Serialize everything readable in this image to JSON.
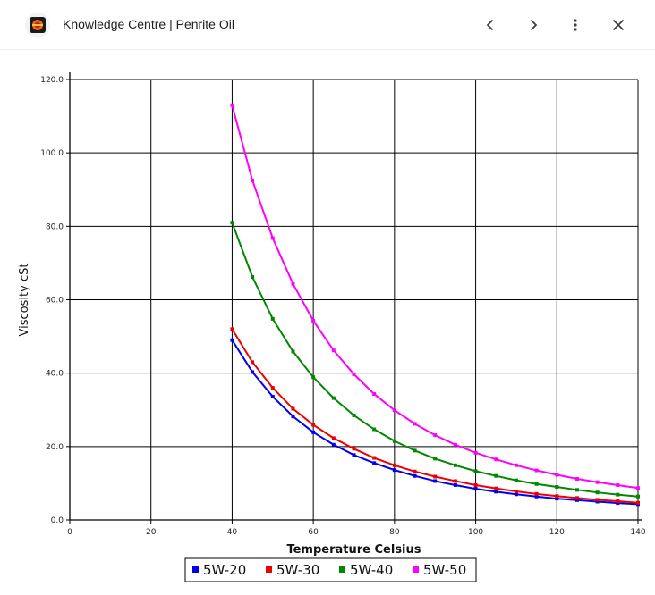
{
  "header": {
    "title": "Knowledge Centre | Penrite Oil",
    "icons": [
      "penrite-logo-icon",
      "chevron-left-icon",
      "chevron-right-icon",
      "more-vert-icon",
      "close-icon"
    ]
  },
  "chart_data": {
    "type": "line",
    "title": "",
    "xlabel": "Temperature Celsius",
    "ylabel": "Viscosity cSt",
    "xlim": [
      0,
      140
    ],
    "ylim": [
      0,
      120
    ],
    "grid": true,
    "legend": "bottom",
    "x_ticks": [
      "0",
      "20",
      "40",
      "60",
      "80",
      "100",
      "120",
      "140"
    ],
    "y_ticks": [
      "0.0",
      "20.0",
      "40.0",
      "60.0",
      "80.0",
      "100.0",
      "120.0"
    ],
    "x": [
      40,
      45,
      50,
      55,
      60,
      65,
      70,
      75,
      80,
      85,
      90,
      95,
      100,
      105,
      110,
      115,
      120,
      125,
      130,
      135,
      140
    ],
    "series": [
      {
        "name": "5W-20",
        "color": "#0000ee",
        "values": [
          49.0,
          40.3,
          33.6,
          28.2,
          23.9,
          20.5,
          17.7,
          15.5,
          13.6,
          12.0,
          10.6,
          9.5,
          8.5,
          7.7,
          7.0,
          6.4,
          5.8,
          5.4,
          5.0,
          4.6,
          4.3
        ]
      },
      {
        "name": "5W-30",
        "color": "#ee0000",
        "values": [
          52.0,
          43.0,
          36.0,
          30.3,
          25.9,
          22.3,
          19.4,
          16.9,
          14.9,
          13.2,
          11.8,
          10.6,
          9.5,
          8.6,
          7.8,
          7.1,
          6.5,
          6.0,
          5.5,
          5.1,
          4.7
        ]
      },
      {
        "name": "5W-40",
        "color": "#008800",
        "values": [
          81.0,
          66.2,
          54.8,
          45.9,
          38.9,
          33.2,
          28.5,
          24.7,
          21.5,
          18.9,
          16.7,
          14.9,
          13.3,
          12.0,
          10.8,
          9.8,
          9.0,
          8.2,
          7.5,
          6.9,
          6.4
        ]
      },
      {
        "name": "5W-50",
        "color": "#ff00ff",
        "values": [
          113.0,
          92.5,
          76.8,
          64.3,
          54.3,
          46.2,
          39.7,
          34.3,
          29.9,
          26.2,
          23.1,
          20.5,
          18.3,
          16.5,
          14.9,
          13.5,
          12.3,
          11.2,
          10.3,
          9.5,
          8.7
        ]
      }
    ]
  }
}
